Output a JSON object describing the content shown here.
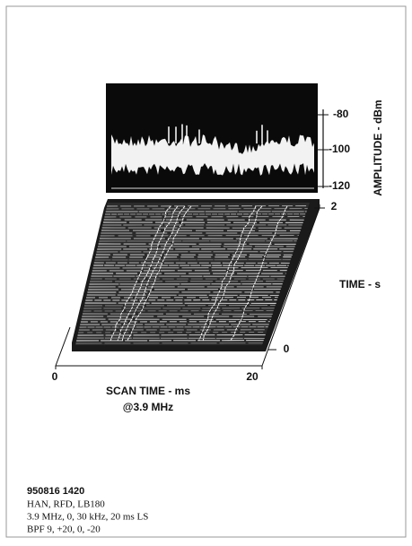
{
  "amplitude_panel": {
    "axis_label": "AMPLITUDE - dBm",
    "ticks": [
      "-80",
      "-100",
      "-120"
    ]
  },
  "waterfall": {
    "time_axis": {
      "label": "TIME - s",
      "ticks": [
        "2",
        "0"
      ]
    },
    "scan_axis": {
      "label": "SCAN TIME - ms",
      "sublabel": "@3.9 MHz",
      "ticks": [
        "0",
        "20"
      ]
    }
  },
  "caption": {
    "id": "950816 1420",
    "lines": [
      "HAN, RFD, LB180",
      "3.9 MHz, 0, 30 kHz, 20 ms LS",
      "BPF 9, +20, 0, -20"
    ]
  }
}
